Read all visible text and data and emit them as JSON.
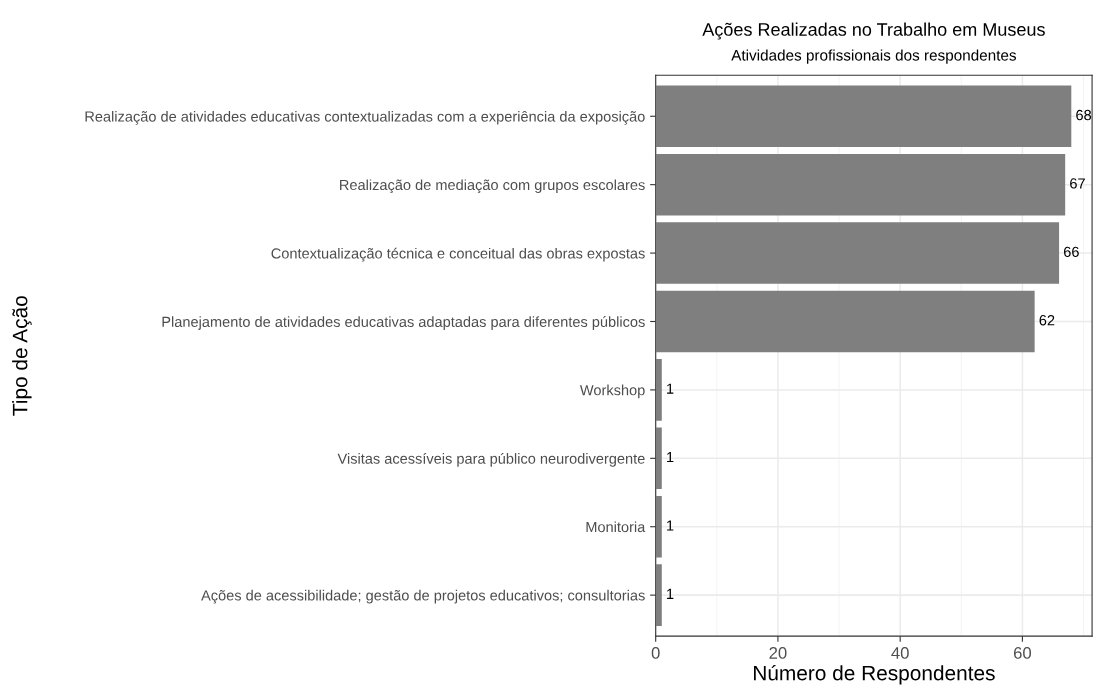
{
  "chart_data": {
    "type": "bar",
    "orientation": "horizontal",
    "title": "Ações Realizadas no Trabalho em Museus",
    "subtitle": "Atividades profissionais dos respondentes",
    "xlabel": "Número de Respondentes",
    "ylabel": "Tipo de Ação",
    "categories": [
      "Realização de atividades educativas contextualizadas com a experiência da exposição",
      "Realização de mediação com grupos escolares",
      "Contextualização técnica e conceitual das obras expostas",
      "Planejamento de atividades educativas adaptadas para diferentes públicos",
      "Workshop",
      "Visitas acessíveis para público neurodivergente",
      "Monitoria",
      "Ações de acessibilidade; gestão de projetos educativos; consultorias"
    ],
    "values": [
      68,
      67,
      66,
      62,
      1,
      1,
      1,
      1
    ],
    "color": "#7f7f7f",
    "xlim": [
      0,
      71.4
    ],
    "xticks": [
      0,
      20,
      40,
      60
    ],
    "grid": true,
    "data_labels": true
  }
}
